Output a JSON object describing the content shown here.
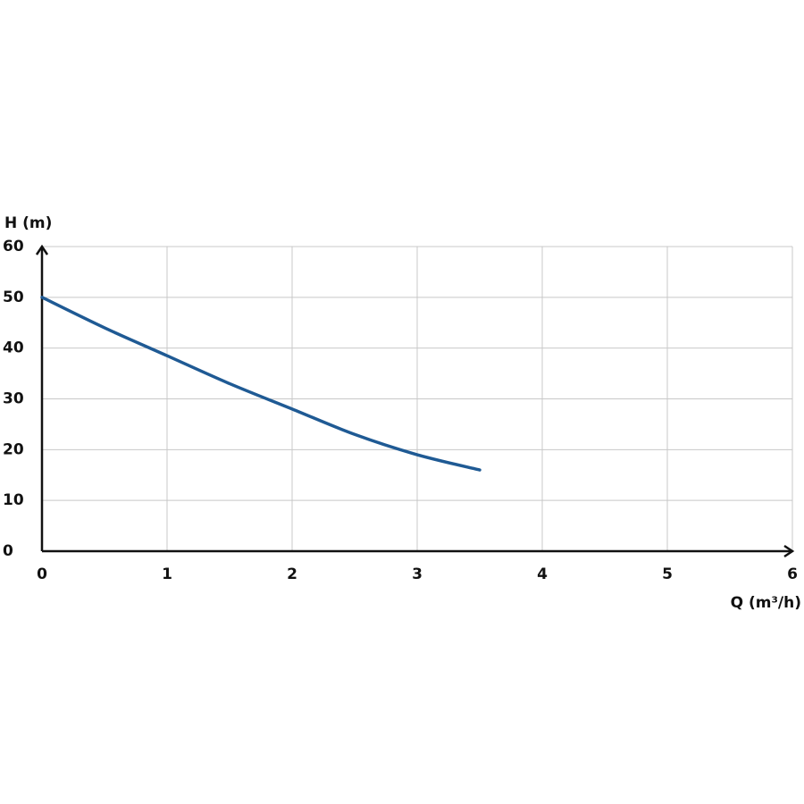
{
  "chart_data": {
    "type": "line",
    "x_label": "Q (m³/h)",
    "y_label": "H (m)",
    "x": [
      0,
      0.5,
      1,
      1.5,
      2,
      2.5,
      3,
      3.5
    ],
    "series": [
      {
        "color": "#1f5a94",
        "values": [
          50,
          44,
          38.5,
          33,
          28,
          23,
          19,
          16
        ]
      }
    ],
    "xlim": [
      0,
      6
    ],
    "ylim": [
      0,
      60
    ],
    "xticks": [
      0,
      1,
      2,
      3,
      4,
      5,
      6
    ],
    "yticks": [
      0,
      10,
      20,
      30,
      40,
      50,
      60
    ],
    "grid": true
  }
}
